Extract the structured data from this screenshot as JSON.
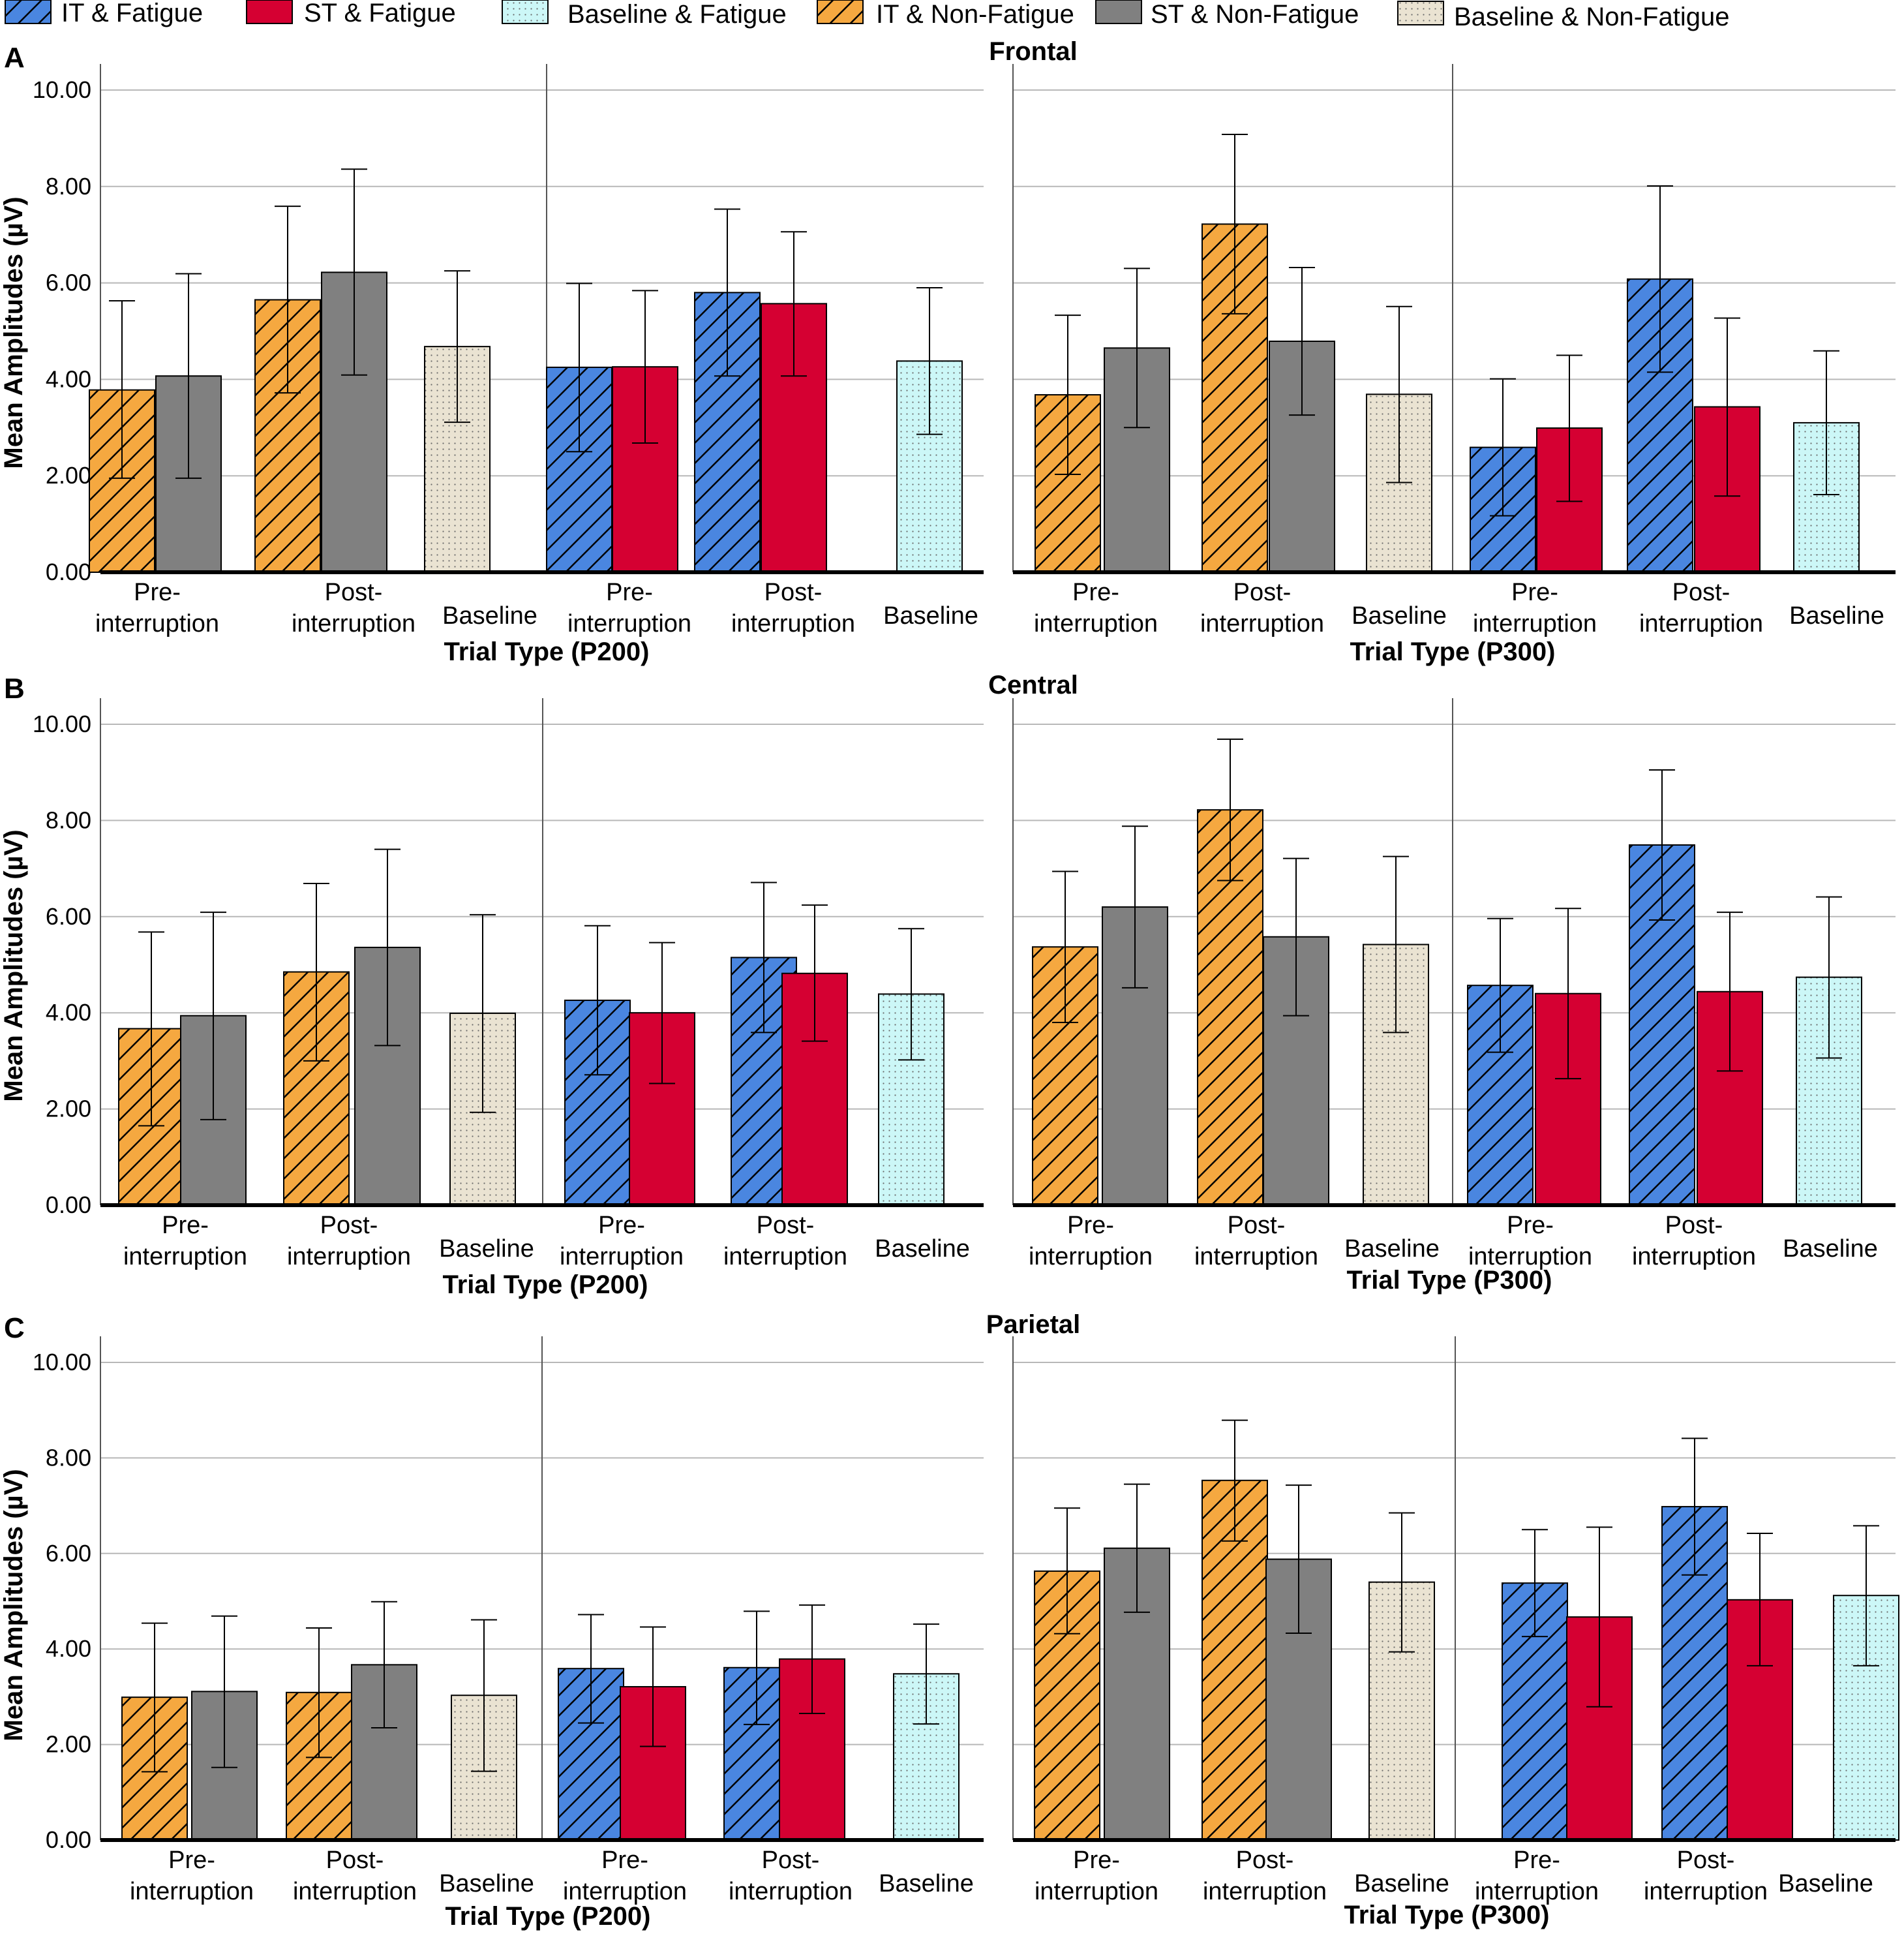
{
  "legend": [
    {
      "label": "IT & Fatigue",
      "style": "it_fatigue"
    },
    {
      "label": "ST & Fatigue",
      "style": "st_fatigue"
    },
    {
      "label": "Baseline & Fatigue",
      "style": "base_fatigue"
    },
    {
      "label": "IT & Non-Fatigue",
      "style": "it_nonfatigue"
    },
    {
      "label": "ST & Non-Fatigue",
      "style": "st_nonfatigue"
    },
    {
      "label": "Baseline & Non-Fatigue",
      "style": "base_nonfatigue"
    }
  ],
  "colors": {
    "it_fatigue": "#4a86e0",
    "st_fatigue": "#d50032",
    "base_fatigue": "#ccf7f7",
    "it_nonfatigue": "#f5a840",
    "st_nonfatigue": "#808080",
    "base_nonfatigue": "#eae3d2"
  },
  "y_axis_label": "Mean Amplitudes (µV)",
  "category_labels": {
    "pre": [
      "Pre-",
      "interruption"
    ],
    "post": [
      "Post-",
      "interruption"
    ],
    "base": [
      "Baseline"
    ]
  },
  "chart_data": [
    {
      "type": "bar",
      "panel": "A",
      "region": "Frontal",
      "component": "P200",
      "xlabel": "Trial Type (P200)",
      "ylabel": "Mean Amplitudes (µV)",
      "ylim": [
        0,
        10
      ],
      "yticks": [
        "0.00",
        "2.00",
        "4.00",
        "6.00",
        "8.00",
        "10.00"
      ],
      "groups": [
        {
          "bars": [
            {
              "cat": "pre",
              "style": "it_nonfatigue",
              "value": 3.78,
              "err": [
                1.95,
                5.63
              ]
            },
            {
              "cat": "pre",
              "style": "st_nonfatigue",
              "value": 4.07,
              "err": [
                1.95,
                6.19
              ]
            },
            {
              "cat": "post",
              "style": "it_nonfatigue",
              "value": 5.65,
              "err": [
                3.72,
                7.59
              ]
            },
            {
              "cat": "post",
              "style": "st_nonfatigue",
              "value": 6.22,
              "err": [
                4.09,
                8.36
              ]
            },
            {
              "cat": "base",
              "style": "base_nonfatigue",
              "value": 4.68,
              "err": [
                3.11,
                6.25
              ]
            }
          ]
        },
        {
          "bars": [
            {
              "cat": "pre",
              "style": "it_fatigue",
              "value": 4.25,
              "err": [
                2.5,
                5.99
              ]
            },
            {
              "cat": "pre",
              "style": "st_fatigue",
              "value": 4.26,
              "err": [
                2.68,
                5.84
              ]
            },
            {
              "cat": "post",
              "style": "it_fatigue",
              "value": 5.8,
              "err": [
                4.07,
                7.53
              ]
            },
            {
              "cat": "post",
              "style": "st_fatigue",
              "value": 5.57,
              "err": [
                4.07,
                7.06
              ]
            },
            {
              "cat": "base",
              "style": "base_fatigue",
              "value": 4.38,
              "err": [
                2.86,
                5.9
              ]
            }
          ]
        }
      ]
    },
    {
      "type": "bar",
      "panel": "A",
      "region": "Frontal",
      "component": "P300",
      "xlabel": "Trial Type (P300)",
      "ylabel": "",
      "ylim": [
        0,
        10
      ],
      "groups": [
        {
          "bars": [
            {
              "cat": "pre",
              "style": "it_nonfatigue",
              "value": 3.68,
              "err": [
                2.03,
                5.33
              ]
            },
            {
              "cat": "pre",
              "style": "st_nonfatigue",
              "value": 4.65,
              "err": [
                3.0,
                6.3
              ]
            },
            {
              "cat": "post",
              "style": "it_nonfatigue",
              "value": 7.22,
              "err": [
                5.36,
                9.08
              ]
            },
            {
              "cat": "post",
              "style": "st_nonfatigue",
              "value": 4.79,
              "err": [
                3.26,
                6.32
              ]
            },
            {
              "cat": "base",
              "style": "base_nonfatigue",
              "value": 3.69,
              "err": [
                1.86,
                5.51
              ]
            }
          ]
        },
        {
          "bars": [
            {
              "cat": "pre",
              "style": "it_fatigue",
              "value": 2.59,
              "err": [
                1.17,
                4.01
              ]
            },
            {
              "cat": "pre",
              "style": "st_fatigue",
              "value": 2.99,
              "err": [
                1.47,
                4.5
              ]
            },
            {
              "cat": "post",
              "style": "it_fatigue",
              "value": 6.08,
              "err": [
                4.15,
                8.01
              ]
            },
            {
              "cat": "post",
              "style": "st_fatigue",
              "value": 3.43,
              "err": [
                1.58,
                5.27
              ]
            },
            {
              "cat": "base",
              "style": "base_fatigue",
              "value": 3.1,
              "err": [
                1.61,
                4.59
              ]
            }
          ]
        }
      ]
    },
    {
      "type": "bar",
      "panel": "B",
      "region": "Central",
      "component": "P200",
      "xlabel": "Trial Type (P200)",
      "ylabel": "Mean Amplitudes (µV)",
      "ylim": [
        0,
        10
      ],
      "yticks": [
        "0.00",
        "2.00",
        "4.00",
        "6.00",
        "8.00",
        "10.00"
      ],
      "groups": [
        {
          "bars": [
            {
              "cat": "pre",
              "style": "it_nonfatigue",
              "value": 3.67,
              "err": [
                1.65,
                5.68
              ]
            },
            {
              "cat": "pre",
              "style": "st_nonfatigue",
              "value": 3.94,
              "err": [
                1.78,
                6.09
              ]
            },
            {
              "cat": "post",
              "style": "it_nonfatigue",
              "value": 4.85,
              "err": [
                3.0,
                6.69
              ]
            },
            {
              "cat": "post",
              "style": "st_nonfatigue",
              "value": 5.36,
              "err": [
                3.32,
                7.4
              ]
            },
            {
              "cat": "base",
              "style": "base_nonfatigue",
              "value": 3.99,
              "err": [
                1.93,
                6.04
              ]
            }
          ]
        },
        {
          "bars": [
            {
              "cat": "pre",
              "style": "it_fatigue",
              "value": 4.26,
              "err": [
                2.71,
                5.81
              ]
            },
            {
              "cat": "pre",
              "style": "st_fatigue",
              "value": 4.0,
              "err": [
                2.53,
                5.46
              ]
            },
            {
              "cat": "post",
              "style": "it_fatigue",
              "value": 5.15,
              "err": [
                3.59,
                6.71
              ]
            },
            {
              "cat": "post",
              "style": "st_fatigue",
              "value": 4.82,
              "err": [
                3.41,
                6.24
              ]
            },
            {
              "cat": "base",
              "style": "base_fatigue",
              "value": 4.39,
              "err": [
                3.02,
                5.75
              ]
            }
          ]
        }
      ]
    },
    {
      "type": "bar",
      "panel": "B",
      "region": "Central",
      "component": "P300",
      "xlabel": "Trial Type (P300)",
      "ylabel": "",
      "ylim": [
        0,
        10
      ],
      "groups": [
        {
          "bars": [
            {
              "cat": "pre",
              "style": "it_nonfatigue",
              "value": 5.37,
              "err": [
                3.8,
                6.94
              ]
            },
            {
              "cat": "pre",
              "style": "st_nonfatigue",
              "value": 6.2,
              "err": [
                4.52,
                7.88
              ]
            },
            {
              "cat": "post",
              "style": "it_nonfatigue",
              "value": 8.22,
              "err": [
                6.75,
                9.69
              ]
            },
            {
              "cat": "post",
              "style": "st_nonfatigue",
              "value": 5.58,
              "err": [
                3.94,
                7.21
              ]
            },
            {
              "cat": "base",
              "style": "base_nonfatigue",
              "value": 5.42,
              "err": [
                3.59,
                7.25
              ]
            }
          ]
        },
        {
          "bars": [
            {
              "cat": "pre",
              "style": "it_fatigue",
              "value": 4.57,
              "err": [
                3.18,
                5.96
              ]
            },
            {
              "cat": "pre",
              "style": "st_fatigue",
              "value": 4.4,
              "err": [
                2.63,
                6.17
              ]
            },
            {
              "cat": "post",
              "style": "it_fatigue",
              "value": 7.49,
              "err": [
                5.93,
                9.05
              ]
            },
            {
              "cat": "post",
              "style": "st_fatigue",
              "value": 4.44,
              "err": [
                2.79,
                6.09
              ]
            },
            {
              "cat": "base",
              "style": "base_fatigue",
              "value": 4.74,
              "err": [
                3.06,
                6.41
              ]
            }
          ]
        }
      ]
    },
    {
      "type": "bar",
      "panel": "C",
      "region": "Parietal",
      "component": "P200",
      "xlabel": "Trial Type (P200)",
      "ylabel": "Mean Amplitudes (µV)",
      "ylim": [
        0,
        10
      ],
      "yticks": [
        "0.00",
        "2.00",
        "4.00",
        "6.00",
        "8.00",
        "10.00"
      ],
      "groups": [
        {
          "bars": [
            {
              "cat": "pre",
              "style": "it_nonfatigue",
              "value": 2.99,
              "err": [
                1.43,
                4.54
              ]
            },
            {
              "cat": "pre",
              "style": "st_nonfatigue",
              "value": 3.11,
              "err": [
                1.52,
                4.69
              ]
            },
            {
              "cat": "post",
              "style": "it_nonfatigue",
              "value": 3.09,
              "err": [
                1.73,
                4.44
              ]
            },
            {
              "cat": "post",
              "style": "st_nonfatigue",
              "value": 3.67,
              "err": [
                2.35,
                4.99
              ]
            },
            {
              "cat": "base",
              "style": "base_nonfatigue",
              "value": 3.03,
              "err": [
                1.44,
                4.61
              ]
            }
          ]
        },
        {
          "bars": [
            {
              "cat": "pre",
              "style": "it_fatigue",
              "value": 3.59,
              "err": [
                2.45,
                4.72
              ]
            },
            {
              "cat": "pre",
              "style": "st_fatigue",
              "value": 3.21,
              "err": [
                1.96,
                4.46
              ]
            },
            {
              "cat": "post",
              "style": "it_fatigue",
              "value": 3.61,
              "err": [
                2.42,
                4.79
              ]
            },
            {
              "cat": "post",
              "style": "st_fatigue",
              "value": 3.79,
              "err": [
                2.65,
                4.92
              ]
            },
            {
              "cat": "base",
              "style": "base_fatigue",
              "value": 3.48,
              "err": [
                2.43,
                4.52
              ]
            }
          ]
        }
      ]
    },
    {
      "type": "bar",
      "panel": "C",
      "region": "Parietal",
      "component": "P300",
      "xlabel": "Trial Type (P300)",
      "ylabel": "",
      "ylim": [
        0,
        10
      ],
      "groups": [
        {
          "bars": [
            {
              "cat": "pre",
              "style": "it_nonfatigue",
              "value": 5.63,
              "err": [
                4.32,
                6.95
              ]
            },
            {
              "cat": "pre",
              "style": "st_nonfatigue",
              "value": 6.11,
              "err": [
                4.77,
                7.45
              ]
            },
            {
              "cat": "post",
              "style": "it_nonfatigue",
              "value": 7.53,
              "err": [
                6.26,
                8.79
              ]
            },
            {
              "cat": "post",
              "style": "st_nonfatigue",
              "value": 5.88,
              "err": [
                4.33,
                7.43
              ]
            },
            {
              "cat": "base",
              "style": "base_nonfatigue",
              "value": 5.4,
              "err": [
                3.94,
                6.85
              ]
            }
          ]
        },
        {
          "bars": [
            {
              "cat": "pre",
              "style": "it_fatigue",
              "value": 5.38,
              "err": [
                4.26,
                6.5
              ]
            },
            {
              "cat": "pre",
              "style": "st_fatigue",
              "value": 4.67,
              "err": [
                2.79,
                6.55
              ]
            },
            {
              "cat": "post",
              "style": "it_fatigue",
              "value": 6.98,
              "err": [
                5.55,
                8.41
              ]
            },
            {
              "cat": "post",
              "style": "st_fatigue",
              "value": 5.03,
              "err": [
                3.65,
                6.42
              ]
            },
            {
              "cat": "base",
              "style": "base_fatigue",
              "value": 5.12,
              "err": [
                3.65,
                6.58
              ]
            }
          ]
        }
      ]
    }
  ]
}
